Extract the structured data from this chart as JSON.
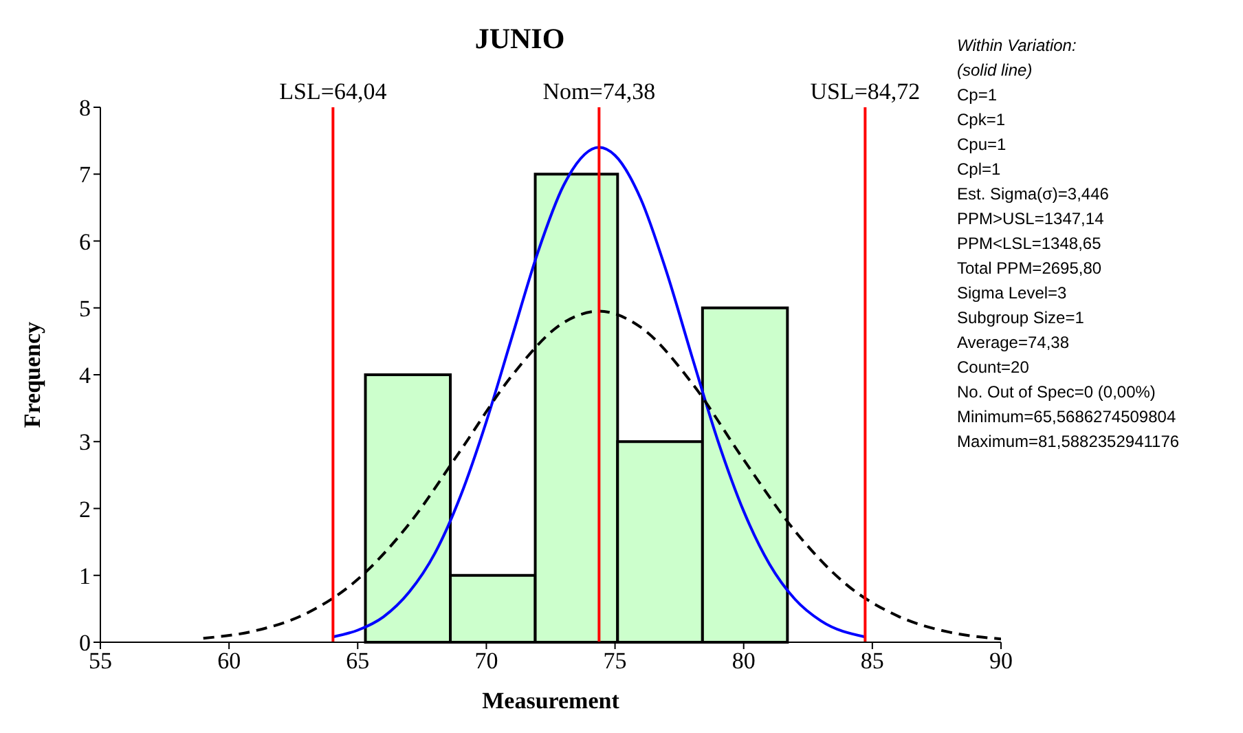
{
  "chart_data": {
    "type": "histogram",
    "title": "JUNIO",
    "xlabel": "Measurement",
    "ylabel": "Frequency",
    "bins": [
      65.3,
      68.6,
      71.9,
      75.1,
      78.4,
      81.7
    ],
    "values": [
      4,
      1,
      7,
      3,
      5
    ],
    "color": "#ccffcc",
    "xlim": [
      55,
      90
    ],
    "xticks": [
      55,
      60,
      65,
      70,
      75,
      80,
      85,
      90
    ],
    "ylim": [
      0,
      8
    ],
    "yticks": [
      0,
      1,
      2,
      3,
      4,
      5,
      6,
      7,
      8
    ],
    "series": [
      {
        "type": "line",
        "color": "#0000ff",
        "line_style": "solid",
        "x": [
          64.04,
          65,
          66,
          67,
          68,
          69,
          70,
          71,
          72,
          73,
          74.38,
          75,
          76,
          77,
          78,
          79,
          80,
          81,
          82,
          83,
          84.72
        ],
        "values": [
          0.08,
          0.18,
          0.38,
          0.75,
          1.33,
          2.19,
          3.3,
          4.57,
          5.83,
          6.83,
          7.4,
          7.28,
          6.63,
          5.54,
          4.26,
          3.01,
          1.96,
          1.17,
          0.64,
          0.32,
          0.08
        ]
      },
      {
        "type": "line",
        "color": "#000000",
        "line_style": "dashed",
        "x": [
          59,
          61,
          63,
          65,
          67,
          69,
          71,
          73,
          74.38,
          76,
          78,
          80,
          82,
          84,
          86,
          88,
          90
        ],
        "values": [
          0.06,
          0.17,
          0.43,
          0.94,
          1.77,
          2.87,
          3.99,
          4.78,
          4.95,
          4.71,
          3.87,
          2.73,
          1.66,
          0.86,
          0.39,
          0.15,
          0.05
        ]
      }
    ],
    "ref_lines": [
      {
        "axis": "x",
        "value": 64.04,
        "label": "LSL=64,04",
        "color": "#ff0000"
      },
      {
        "axis": "x",
        "value": 74.38,
        "label": "Nom=74,38",
        "color": "#ff0000"
      },
      {
        "axis": "x",
        "value": 84.72,
        "label": "USL=84,72",
        "color": "#ff0000"
      }
    ],
    "annotations": [
      "Within Variation:",
      "(solid line)",
      "Cp=1",
      "Cpk=1",
      "Cpu=1",
      "Cpl=1",
      "Est. Sigma(σ)=3,446",
      "PPM>USL=1347,14",
      "PPM<LSL=1348,65",
      "Total PPM=2695,80",
      "Sigma Level=3",
      "Subgroup Size=1",
      "Average=74,38",
      "Count=20",
      "No. Out of Spec=0 (0,00%)",
      "Minimum=65,5686274509804",
      "Maximum=81,5882352941176"
    ]
  }
}
